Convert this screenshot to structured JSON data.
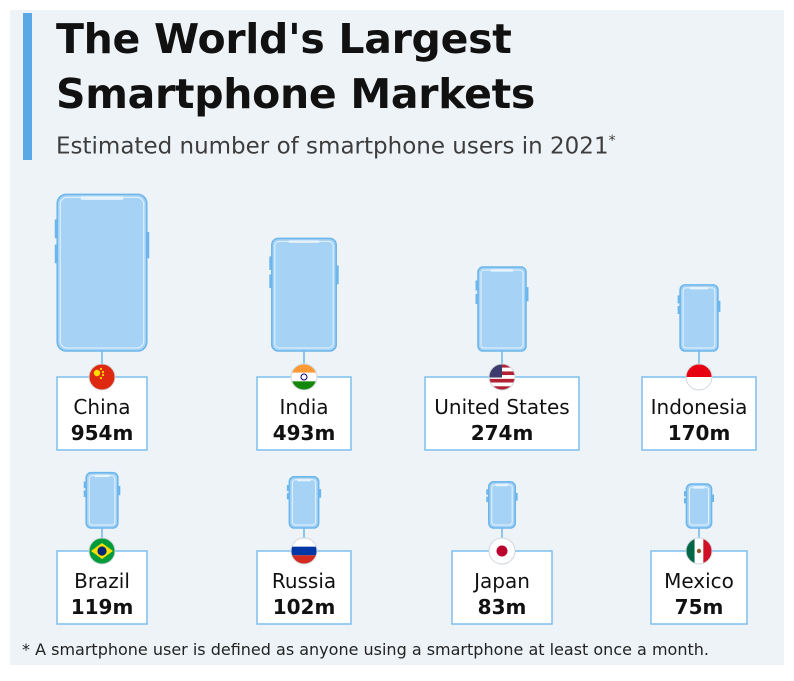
{
  "header": {
    "title_line1": "The World's Largest",
    "title_line2": "Smartphone Markets",
    "subtitle": "Estimated number of smartphone users in 2021",
    "subtitle_mark": "*"
  },
  "footnote": "* A smartphone user is defined as anyone using a smartphone at least once a month.",
  "colors": {
    "accent": "#5aa8e6",
    "phone_fill": "#a6d3f5",
    "phone_outline": "#6cb6ec",
    "label_border": "#7dbfee",
    "background": "#eef3f7"
  },
  "chart_data": {
    "type": "pictogram",
    "title": "The World's Largest Smartphone Markets",
    "subtitle": "Estimated number of smartphone users in 2021",
    "unit": "m",
    "categories": [
      "China",
      "India",
      "United States",
      "Indonesia",
      "Brazil",
      "Russia",
      "Japan",
      "Mexico"
    ],
    "values": [
      954,
      493,
      274,
      170,
      119,
      102,
      83,
      75
    ],
    "value_labels": [
      "954m",
      "493m",
      "274m",
      "170m",
      "119m",
      "102m",
      "83m",
      "75m"
    ],
    "flags": [
      "china-flag-icon",
      "india-flag-icon",
      "united-states-flag-icon",
      "indonesia-flag-icon",
      "brazil-flag-icon",
      "russia-flag-icon",
      "japan-flag-icon",
      "mexico-flag-icon"
    ]
  }
}
